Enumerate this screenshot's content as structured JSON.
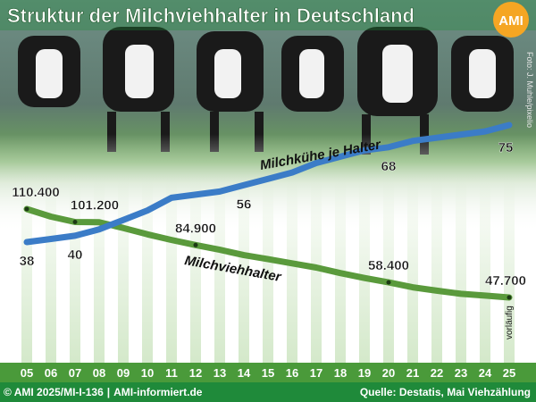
{
  "header": {
    "title": "Struktur der Milchviehhalter in Deutschland",
    "logo_text": "AMI",
    "photo_credit": "Foto: J. Muhle/pixelio"
  },
  "colors": {
    "title_bar": "#1f8a3a",
    "logo_orange": "#f5a623",
    "blue_line": "#3b7cc7",
    "green_line": "#5a9a3c",
    "axis_bar": "#4a9a3a",
    "footer_bg": "#1f8a3a"
  },
  "chart_data": {
    "type": "line",
    "categories": [
      "05",
      "06",
      "07",
      "08",
      "09",
      "10",
      "11",
      "12",
      "13",
      "14",
      "15",
      "16",
      "17",
      "18",
      "19",
      "20",
      "21",
      "22",
      "23",
      "24",
      "25"
    ],
    "series": [
      {
        "name": "Milchkühe je Halter",
        "color": "#3b7cc7",
        "values": [
          38,
          39,
          40,
          42,
          45,
          48,
          52,
          53,
          54,
          56,
          58,
          60,
          63,
          65,
          67,
          68,
          70,
          71,
          72,
          73,
          75
        ],
        "labeled_points": [
          {
            "index": 0,
            "label": "38"
          },
          {
            "index": 2,
            "label": "40"
          },
          {
            "index": 9,
            "label": "56"
          },
          {
            "index": 15,
            "label": "68"
          },
          {
            "index": 20,
            "label": "75"
          }
        ]
      },
      {
        "name": "Milchviehhalter",
        "color": "#5a9a3c",
        "values": [
          110400,
          105000,
          101200,
          101000,
          97000,
          92500,
          88500,
          84900,
          81500,
          77700,
          74900,
          71900,
          68900,
          65000,
          61500,
          58400,
          54900,
          52500,
          50300,
          49000,
          47700
        ],
        "labeled_points": [
          {
            "index": 0,
            "label": "110.400"
          },
          {
            "index": 2,
            "label": "101.200"
          },
          {
            "index": 7,
            "label": "84.900"
          },
          {
            "index": 15,
            "label": "58.400"
          },
          {
            "index": 20,
            "label": "47.700"
          }
        ],
        "marked_points": [
          0,
          2,
          7,
          15,
          20
        ]
      }
    ],
    "annotations": [
      "vorläufig"
    ]
  },
  "footer": {
    "copyright": "© AMI 2025/MI-I-136",
    "separator": "|",
    "website": "AMI-informiert.de",
    "source": "Quelle: Destatis, Mai Viehzählung"
  }
}
